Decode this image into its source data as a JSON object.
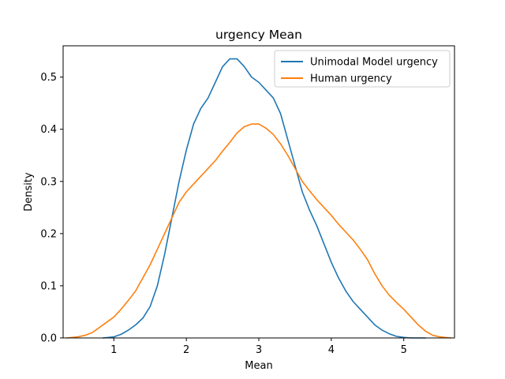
{
  "chart_data": {
    "type": "line",
    "title": "urgency Mean",
    "xlabel": "Mean",
    "ylabel": "Density",
    "xlim": [
      0.3,
      5.7
    ],
    "ylim": [
      0,
      0.56
    ],
    "xticks": [
      "1",
      "2",
      "3",
      "4",
      "5"
    ],
    "yticks": [
      "0.0",
      "0.1",
      "0.2",
      "0.3",
      "0.4",
      "0.5"
    ],
    "legend_position": "top-right",
    "grid": false,
    "series": [
      {
        "name": "Unimodal Model urgency",
        "color": "#1f77b4",
        "x": [
          0.85,
          1.0,
          1.1,
          1.2,
          1.3,
          1.4,
          1.5,
          1.6,
          1.7,
          1.8,
          1.9,
          2.0,
          2.1,
          2.2,
          2.3,
          2.4,
          2.5,
          2.6,
          2.7,
          2.8,
          2.9,
          3.0,
          3.1,
          3.2,
          3.3,
          3.4,
          3.5,
          3.6,
          3.7,
          3.8,
          3.9,
          4.0,
          4.1,
          4.2,
          4.3,
          4.4,
          4.5,
          4.6,
          4.7,
          4.8,
          4.9,
          5.0,
          5.1,
          5.2,
          5.3
        ],
        "y": [
          0.0,
          0.002,
          0.007,
          0.015,
          0.025,
          0.038,
          0.06,
          0.1,
          0.16,
          0.23,
          0.3,
          0.36,
          0.41,
          0.44,
          0.46,
          0.49,
          0.52,
          0.535,
          0.535,
          0.52,
          0.5,
          0.49,
          0.475,
          0.46,
          0.43,
          0.38,
          0.33,
          0.28,
          0.245,
          0.215,
          0.18,
          0.145,
          0.115,
          0.09,
          0.07,
          0.055,
          0.04,
          0.025,
          0.015,
          0.008,
          0.003,
          0.001,
          0.0,
          0.0,
          0.0
        ]
      },
      {
        "name": "Human urgency",
        "color": "#ff7f0e",
        "x": [
          0.35,
          0.5,
          0.6,
          0.7,
          0.8,
          0.9,
          1.0,
          1.1,
          1.2,
          1.3,
          1.4,
          1.5,
          1.6,
          1.7,
          1.8,
          1.9,
          2.0,
          2.1,
          2.2,
          2.3,
          2.4,
          2.5,
          2.6,
          2.7,
          2.8,
          2.9,
          3.0,
          3.1,
          3.2,
          3.3,
          3.4,
          3.5,
          3.6,
          3.7,
          3.8,
          3.9,
          4.0,
          4.1,
          4.2,
          4.3,
          4.4,
          4.5,
          4.6,
          4.7,
          4.8,
          4.9,
          5.0,
          5.1,
          5.2,
          5.3,
          5.4,
          5.5,
          5.65
        ],
        "y": [
          0.0,
          0.002,
          0.005,
          0.01,
          0.02,
          0.03,
          0.04,
          0.055,
          0.072,
          0.09,
          0.115,
          0.14,
          0.17,
          0.2,
          0.23,
          0.26,
          0.28,
          0.295,
          0.31,
          0.325,
          0.34,
          0.358,
          0.375,
          0.393,
          0.405,
          0.41,
          0.41,
          0.402,
          0.39,
          0.372,
          0.35,
          0.325,
          0.3,
          0.282,
          0.265,
          0.25,
          0.235,
          0.218,
          0.203,
          0.188,
          0.17,
          0.15,
          0.123,
          0.1,
          0.082,
          0.068,
          0.055,
          0.04,
          0.025,
          0.013,
          0.005,
          0.002,
          0.0
        ]
      }
    ]
  }
}
